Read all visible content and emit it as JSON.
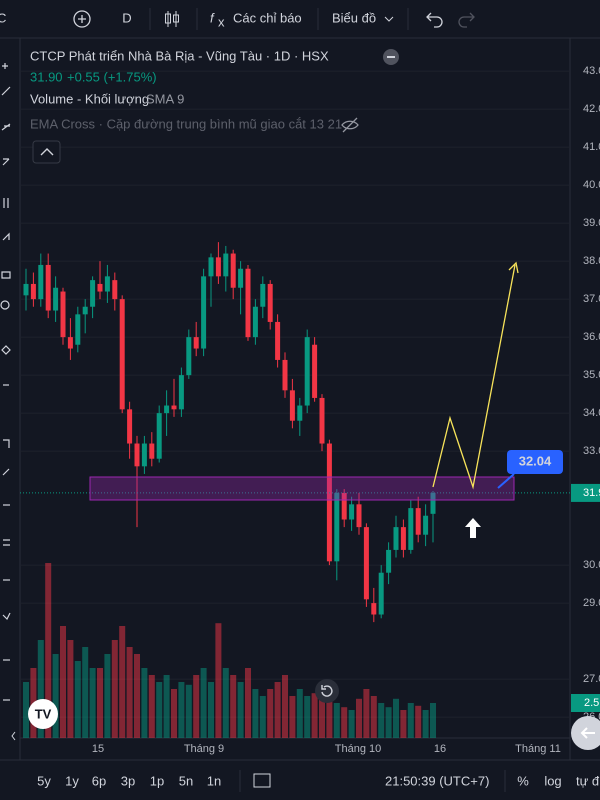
{
  "toolbar": {
    "cut_left": "C",
    "interval": "D",
    "indicators": "Các chỉ báo",
    "chart_menu": "Biểu đồ"
  },
  "legend": {
    "title": "CTCP Phát triển Nhà Bà Rịa - Vũng Tàu · 1D · HSX",
    "price": "31.90",
    "change": "+0.55 (+1.75%)",
    "volume": "Volume - Khối lượng",
    "volume_sma": "SMA 9",
    "ema": "EMA Cross · Cặp đường trung bình mũ giao cắt 13 21"
  },
  "chart_data": {
    "type": "candlestick",
    "open": [
      37.1,
      37.4,
      37.0,
      37.9,
      36.7,
      37.2,
      36.0,
      35.8,
      36.6,
      36.8,
      37.4,
      37.2,
      37.5,
      37.0,
      34.1,
      33.2,
      32.6,
      33.2,
      32.8,
      34.0,
      34.2,
      34.1,
      35.0,
      36.0,
      35.7,
      37.6,
      38.1,
      37.6,
      38.2,
      37.3,
      37.8,
      36.0,
      36.8,
      37.4,
      36.4,
      35.4,
      34.6,
      33.8,
      34.2,
      35.8,
      34.4,
      33.2,
      30.1,
      31.9,
      31.2,
      31.6,
      31.0,
      29.0,
      28.7,
      29.8,
      30.4,
      31.0,
      30.4,
      31.5,
      30.8,
      31.35
    ],
    "high": [
      37.8,
      37.7,
      38.2,
      38.2,
      37.6,
      37.3,
      36.5,
      36.8,
      37.0,
      37.6,
      38.0,
      37.9,
      37.7,
      37.1,
      34.3,
      33.4,
      33.4,
      33.5,
      34.2,
      34.6,
      34.9,
      35.2,
      36.2,
      36.4,
      37.8,
      38.2,
      38.5,
      38.4,
      38.3,
      38.0,
      37.9,
      37.0,
      37.6,
      37.5,
      36.6,
      35.6,
      34.9,
      34.4,
      36.2,
      36.0,
      34.5,
      33.3,
      32.0,
      32.0,
      31.8,
      31.9,
      31.1,
      29.4,
      30.0,
      30.6,
      31.3,
      31.2,
      31.7,
      31.8,
      31.6,
      31.95
    ],
    "low": [
      36.7,
      36.8,
      36.8,
      36.5,
      36.4,
      35.8,
      35.4,
      35.6,
      36.1,
      36.5,
      37.0,
      36.9,
      36.7,
      34.0,
      32.8,
      31.0,
      32.4,
      32.6,
      32.7,
      33.4,
      33.9,
      33.9,
      34.9,
      35.5,
      35.5,
      36.8,
      37.4,
      37.2,
      37.0,
      36.6,
      35.9,
      35.8,
      36.5,
      36.2,
      35.2,
      34.4,
      33.6,
      33.4,
      34.0,
      34.3,
      33.0,
      30.0,
      29.6,
      31.0,
      30.9,
      30.8,
      28.9,
      28.5,
      28.6,
      29.5,
      30.2,
      30.2,
      30.3,
      30.6,
      30.5,
      30.6
    ],
    "close": [
      37.4,
      37.0,
      37.9,
      36.7,
      37.3,
      36.0,
      35.7,
      36.6,
      36.8,
      37.5,
      37.2,
      37.6,
      37.0,
      34.1,
      33.2,
      32.6,
      33.2,
      32.8,
      34.0,
      34.2,
      34.1,
      35.0,
      36.0,
      35.7,
      37.6,
      38.1,
      37.6,
      38.2,
      37.3,
      37.8,
      36.0,
      36.8,
      37.4,
      36.4,
      35.4,
      34.6,
      33.8,
      34.2,
      36.0,
      34.4,
      33.2,
      30.1,
      31.9,
      31.2,
      31.6,
      31.0,
      29.1,
      28.7,
      29.8,
      30.4,
      31.0,
      30.4,
      31.5,
      30.8,
      31.3,
      31.9
    ],
    "volume": [
      4,
      5,
      7,
      12.5,
      6,
      8,
      7,
      5.5,
      6.5,
      5,
      5,
      6,
      7,
      8,
      6.5,
      6,
      5,
      4.5,
      4,
      4.5,
      3.5,
      4,
      3.8,
      4.5,
      5,
      4,
      8.2,
      5,
      4.5,
      4,
      5,
      3.5,
      3,
      3.5,
      4,
      4.5,
      3,
      3.5,
      3,
      3.2,
      3.8,
      4,
      2.5,
      2.2,
      2,
      2.8,
      3.5,
      3,
      2.5,
      2.2,
      2.8,
      2,
      2.5,
      2.3,
      2,
      2.5
    ],
    "volume_label": "2.5",
    "up_color": "#089981",
    "down_color": "#f23645",
    "ylim": [
      25.45,
      43.82
    ],
    "volume_ylim": [
      0,
      14
    ],
    "yticks": [
      {
        "value": 43,
        "label": "43.00"
      },
      {
        "value": 42,
        "label": "42.00"
      },
      {
        "value": 41,
        "label": "41.00"
      },
      {
        "value": 40,
        "label": "40.00"
      },
      {
        "value": 39,
        "label": "39.00"
      },
      {
        "value": 38,
        "label": "38.00"
      },
      {
        "value": 37,
        "label": "37.00"
      },
      {
        "value": 36,
        "label": "36.00"
      },
      {
        "value": 35,
        "label": "35.00"
      },
      {
        "value": 34,
        "label": "34.00"
      },
      {
        "value": 33,
        "label": "33.00"
      },
      {
        "value": 30,
        "label": "30.00"
      },
      {
        "value": 29,
        "label": "29.00"
      },
      {
        "value": 27,
        "label": "27.00"
      },
      {
        "value": 26,
        "label": "26.00"
      }
    ],
    "grid": true,
    "last_price": 31.9,
    "x_labels": [
      "15",
      "Tháng 9",
      "Tháng 10",
      "16",
      "Tháng 11"
    ],
    "annotation": "32.04"
  },
  "bottom_bar": {
    "ranges": [
      "5y",
      "1y",
      "6p",
      "3p",
      "1p",
      "5n",
      "1n"
    ],
    "clock": "21:50:39 (UTC+7)",
    "percent": "%",
    "log": "log",
    "auto": "tự đ"
  }
}
